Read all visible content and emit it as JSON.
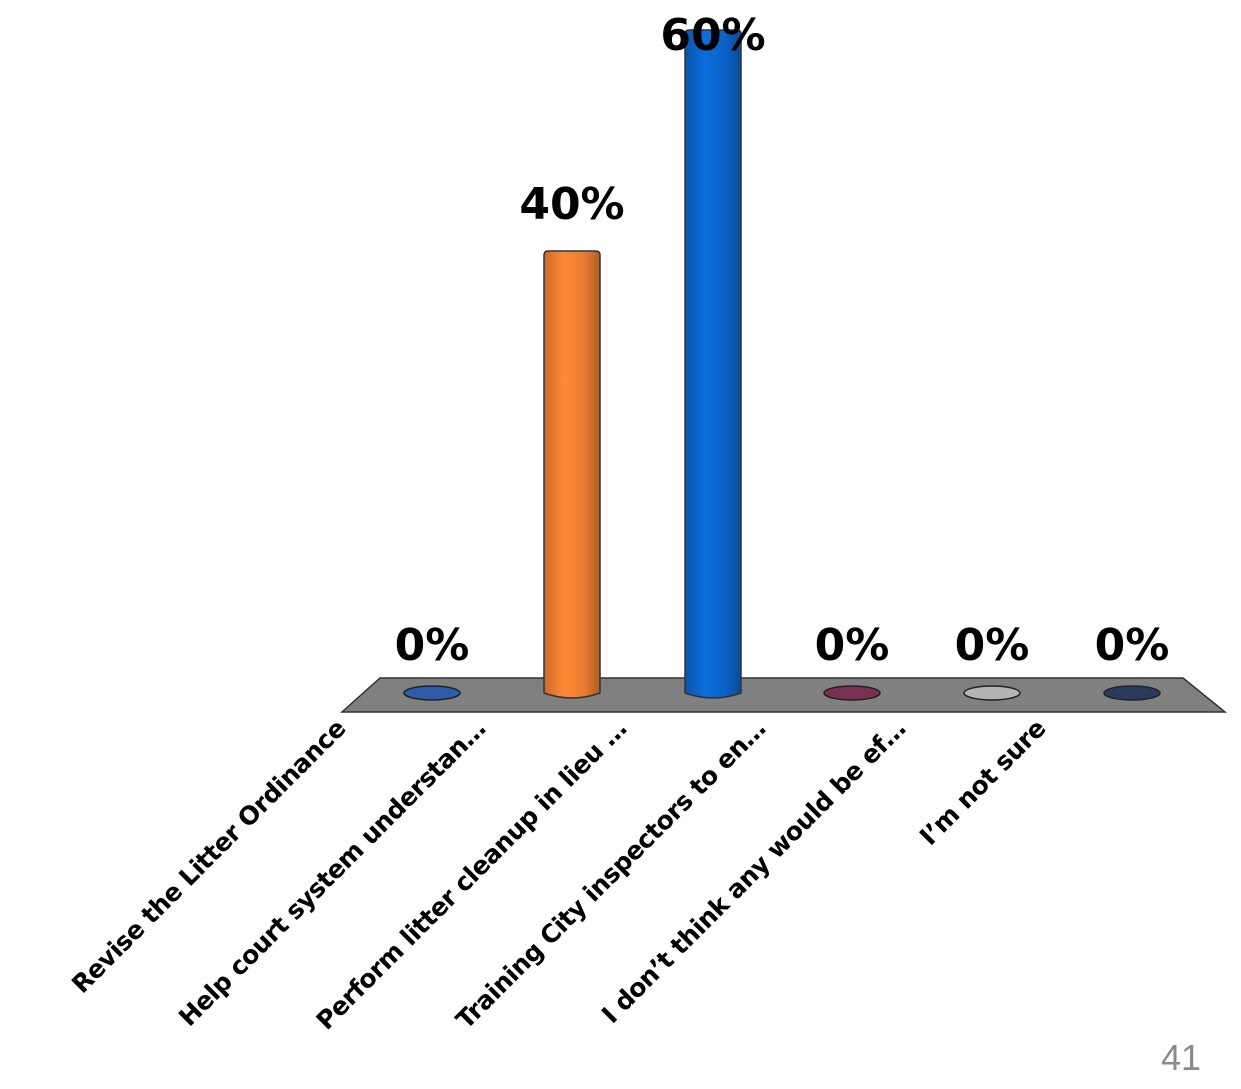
{
  "chart_data": {
    "type": "bar",
    "categories": [
      "Revise the Litter Ordinance",
      "Help court system understan…",
      "Perform litter cleanup in lieu …",
      "Training City inspectors to en…",
      "I don’t think any would be ef…",
      "I’m not sure"
    ],
    "values": [
      0,
      40,
      60,
      0,
      0,
      0
    ],
    "value_labels": [
      "0%",
      "40%",
      "60%",
      "0%",
      "0%",
      "0%"
    ],
    "ylim": [
      0,
      60
    ],
    "grid": false,
    "legend": "none",
    "colors": [
      "#2e5ca8",
      "#ed7d31",
      "#0a64c8",
      "#7a3050",
      "#b4b4b4",
      "#2a3a5c"
    ],
    "floor_color": "#808080"
  },
  "slide": {
    "page_number": "41"
  }
}
